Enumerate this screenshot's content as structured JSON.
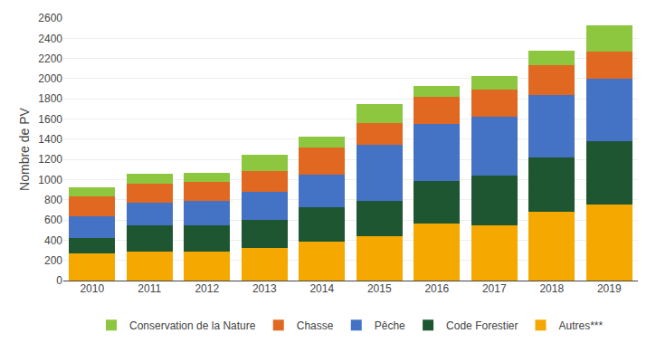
{
  "chart_data": {
    "type": "bar",
    "stacked": true,
    "ylabel": "Nombre de PV",
    "categories": [
      "2010",
      "2011",
      "2012",
      "2013",
      "2014",
      "2015",
      "2016",
      "2017",
      "2018",
      "2019"
    ],
    "series": [
      {
        "name": "Autres***",
        "color": "#F5A800",
        "values": [
          265,
          285,
          290,
          325,
          390,
          435,
          565,
          550,
          680,
          755
        ]
      },
      {
        "name": "Code Forestier",
        "color": "#1E5631",
        "values": [
          160,
          265,
          255,
          280,
          335,
          350,
          420,
          490,
          535,
          625
        ]
      },
      {
        "name": "Pêche",
        "color": "#4472C4",
        "values": [
          215,
          225,
          240,
          275,
          325,
          560,
          565,
          580,
          620,
          620
        ]
      },
      {
        "name": "Chasse",
        "color": "#E06820",
        "values": [
          195,
          180,
          195,
          205,
          270,
          215,
          270,
          275,
          295,
          265
        ]
      },
      {
        "name": "Conservation de la Nature",
        "color": "#8DC63F",
        "values": [
          90,
          100,
          90,
          165,
          110,
          185,
          105,
          130,
          145,
          265
        ]
      }
    ],
    "ylim": [
      0,
      2600
    ],
    "yticks": [
      0,
      200,
      400,
      600,
      800,
      1000,
      1200,
      1400,
      1600,
      1800,
      2000,
      2200,
      2400,
      2600
    ],
    "grid": true,
    "legend": "bottom"
  }
}
